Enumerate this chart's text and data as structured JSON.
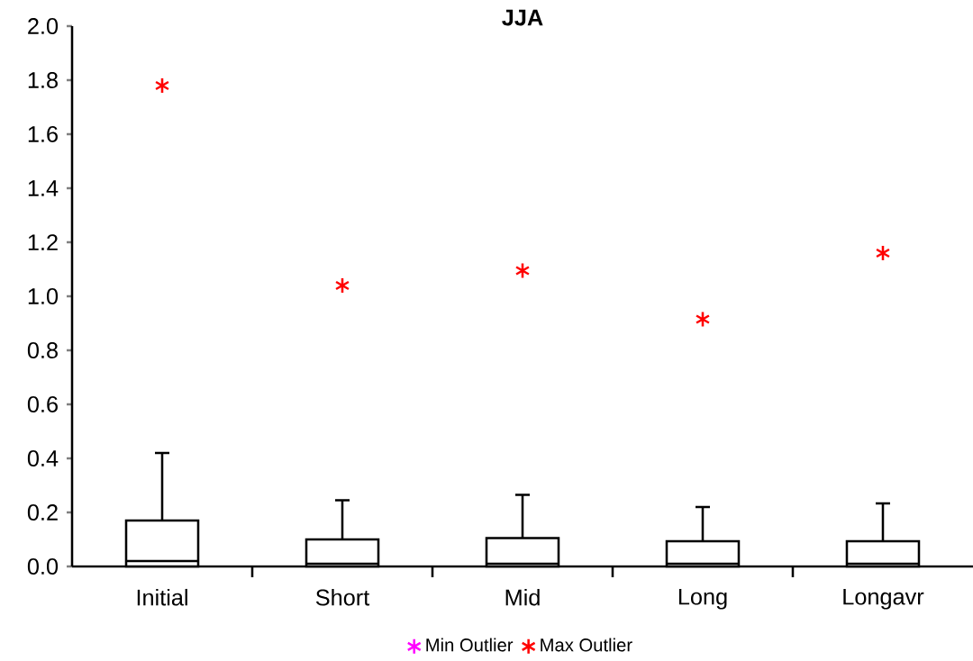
{
  "chart_data": {
    "type": "box",
    "title": "JJA",
    "categories": [
      "Initial",
      "Short",
      "Mid",
      "Long",
      "Longavr"
    ],
    "boxes": [
      {
        "low": 0.0,
        "q1": 0.0,
        "median": 0.02,
        "q3": 0.17,
        "high": 0.42
      },
      {
        "low": 0.0,
        "q1": 0.0,
        "median": 0.01,
        "q3": 0.1,
        "high": 0.245
      },
      {
        "low": 0.0,
        "q1": 0.0,
        "median": 0.01,
        "q3": 0.105,
        "high": 0.265
      },
      {
        "low": 0.0,
        "q1": 0.0,
        "median": 0.01,
        "q3": 0.093,
        "high": 0.22
      },
      {
        "low": 0.0,
        "q1": 0.0,
        "median": 0.01,
        "q3": 0.093,
        "high": 0.233
      }
    ],
    "series": [
      {
        "name": "Min Outlier",
        "type": "scatter",
        "color": "#ff00ff",
        "values": [
          null,
          null,
          null,
          null,
          null
        ]
      },
      {
        "name": "Max Outlier",
        "type": "scatter",
        "color": "#ff0000",
        "x": [
          "Initial",
          "Short",
          "Mid",
          "Long",
          "Longavr"
        ],
        "values": [
          1.78,
          1.04,
          1.095,
          0.915,
          1.16
        ]
      }
    ],
    "ylim": [
      0,
      2.0
    ],
    "yticks": [
      {
        "value": 0,
        "label": "0.0"
      },
      {
        "value": 0.2,
        "label": "0.2"
      },
      {
        "value": 0.4,
        "label": "0.4"
      },
      {
        "value": 0.6,
        "label": "0.6"
      },
      {
        "value": 0.8,
        "label": "0.8"
      },
      {
        "value": 1.0,
        "label": "1.0"
      },
      {
        "value": 1.2,
        "label": "1.2"
      },
      {
        "value": 1.4,
        "label": "1.4"
      },
      {
        "value": 1.6,
        "label": "1.6"
      },
      {
        "value": 1.8,
        "label": "1.8"
      },
      {
        "value": 2.0,
        "label": "2.0"
      }
    ],
    "marker": "cross",
    "legend": "bottom",
    "grid": false
  }
}
